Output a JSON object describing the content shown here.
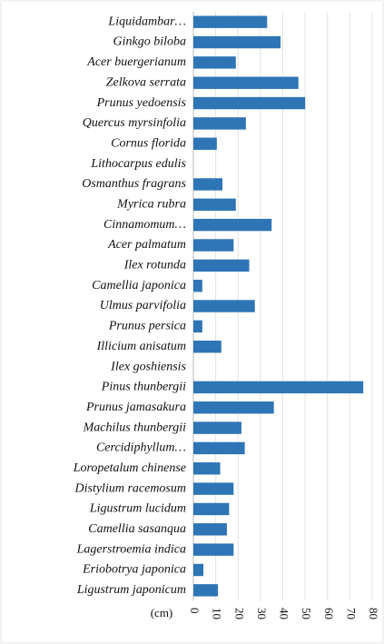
{
  "chart_data": {
    "type": "barh",
    "categories": [
      "Liquidambar…",
      "Ginkgo biloba",
      "Acer buergerianum",
      "Zelkova serrata",
      "Prunus yedoensis",
      "Quercus myrsinfolia",
      "Cornus florida",
      "Lithocarpus edulis",
      "Osmanthus fragrans",
      "Myrica rubra",
      "Cinnamomum…",
      "Acer palmatum",
      "Ilex rotunda",
      "Camellia japonica",
      "Ulmus parvifolia",
      "Prunus persica",
      "Illicium anisatum",
      "Ilex goshiensis",
      "Pinus thunbergii",
      "Prunus jamasakura",
      "Machilus thunbergii",
      "Cercidiphyllum…",
      "Loropetalum chinense",
      "Distylium racemosum",
      "Ligustrum lucidum",
      "Camellia sasanqua",
      "Lagerstroemia indica",
      "Eriobotrya japonica",
      "Ligustrum japonicum"
    ],
    "values": [
      33,
      39,
      19,
      47,
      50,
      23.5,
      10.5,
      0,
      13,
      19,
      35,
      18,
      25,
      4,
      27.5,
      4,
      12.5,
      0,
      76,
      36,
      21.5,
      23,
      12,
      18,
      16,
      15,
      18,
      4.5,
      11
    ],
    "color": "#2e75b6",
    "x_label": "(cm)",
    "xlim": [
      0,
      80
    ],
    "xticks": [
      0,
      10,
      20,
      30,
      40,
      50,
      60,
      70,
      80
    ],
    "grid": true
  }
}
